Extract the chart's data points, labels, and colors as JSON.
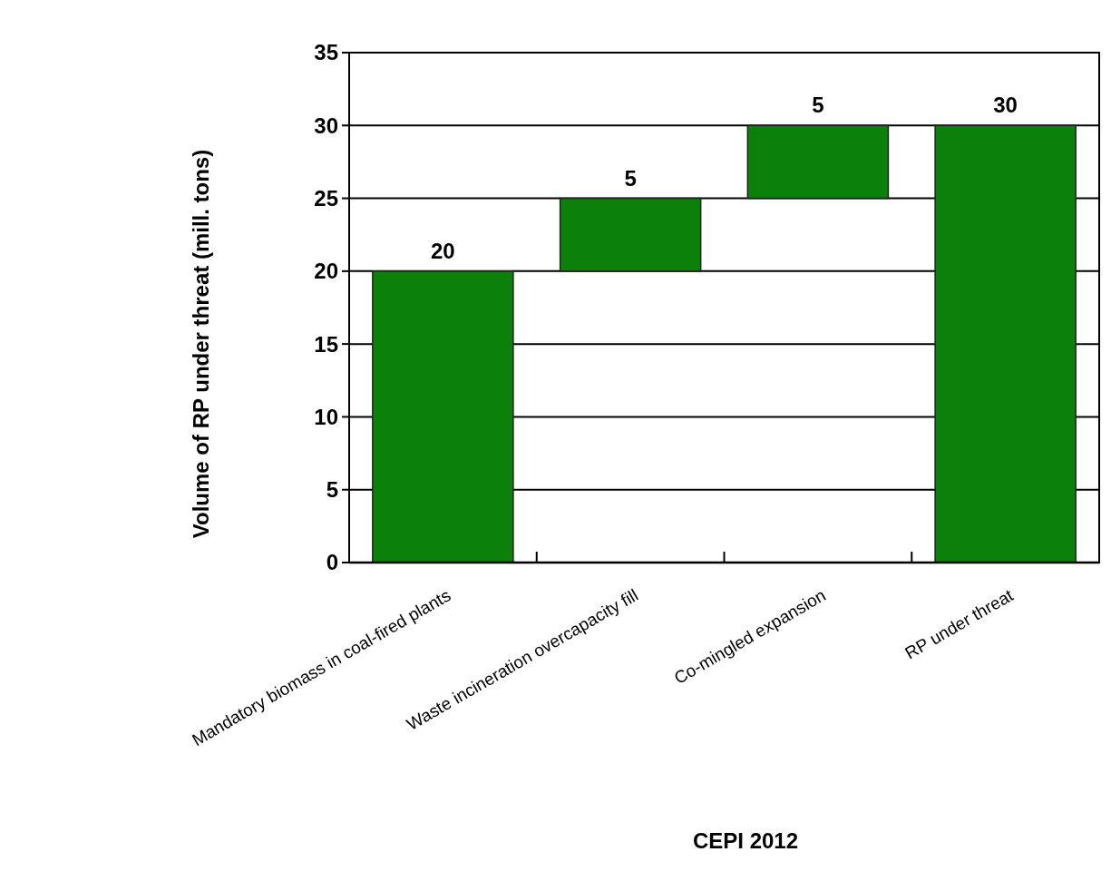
{
  "chart_data": {
    "type": "bar",
    "categories": [
      "Mandatory biomass in coal-fired plants",
      "Waste incineration overcapacity fill",
      "Co-mingled expansion",
      "RP under threat"
    ],
    "values": [
      20,
      5,
      5,
      30
    ],
    "base": [
      0,
      20,
      25,
      0
    ],
    "color": "#0b800b",
    "ylabel": "Volume of RP under threat (mill. tons)",
    "ylim": [
      0,
      35
    ],
    "yticks": [
      0,
      5,
      10,
      15,
      20,
      25,
      30,
      35
    ],
    "grid": "y",
    "data_labels": true,
    "annotations": [
      "CEPI 2012"
    ]
  }
}
